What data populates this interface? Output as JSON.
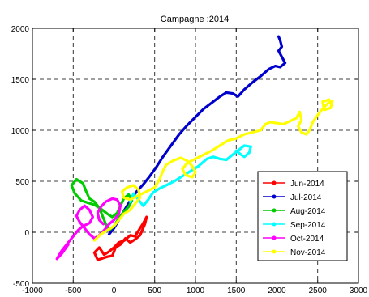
{
  "chart_data": {
    "type": "line",
    "title": "Campagne :2014",
    "xlabel": "",
    "ylabel": "",
    "xlim": [
      -1000,
      3000
    ],
    "ylim": [
      -500,
      2000
    ],
    "xticks": [
      -1000,
      -500,
      0,
      500,
      1000,
      1500,
      2000,
      2500,
      3000
    ],
    "yticks": [
      -500,
      0,
      500,
      1000,
      1500,
      2000
    ],
    "xtick_labels": [
      "-1000",
      "-500",
      "0",
      "500",
      "1000",
      "1500",
      "2000",
      "2500",
      "3000"
    ],
    "ytick_labels": [
      "-500",
      "0",
      "500",
      "1000",
      "1500",
      "2000"
    ],
    "grid": true,
    "legend_position": "lower-right",
    "series": [
      {
        "name": "Jun-2014",
        "color": "#ff0000",
        "points": [
          [
            -200,
            -270
          ],
          [
            -240,
            -200
          ],
          [
            -180,
            -150
          ],
          [
            -120,
            -220
          ],
          [
            -60,
            -190
          ],
          [
            0,
            -150
          ],
          [
            60,
            -100
          ],
          [
            130,
            -80
          ],
          [
            200,
            -30
          ],
          [
            260,
            -40
          ],
          [
            320,
            40
          ],
          [
            360,
            90
          ],
          [
            400,
            150
          ],
          [
            380,
            80
          ],
          [
            320,
            -30
          ],
          [
            260,
            -70
          ],
          [
            200,
            -100
          ],
          [
            140,
            -60
          ],
          [
            80,
            -120
          ],
          [
            20,
            -150
          ],
          [
            -20,
            -230
          ],
          [
            -80,
            -240
          ],
          [
            -160,
            -260
          ],
          [
            -200,
            -270
          ]
        ]
      },
      {
        "name": "Jul-2014",
        "color": "#0000cc",
        "points": [
          [
            -60,
            -20
          ],
          [
            0,
            40
          ],
          [
            60,
            120
          ],
          [
            130,
            220
          ],
          [
            200,
            310
          ],
          [
            280,
            400
          ],
          [
            360,
            470
          ],
          [
            430,
            540
          ],
          [
            520,
            640
          ],
          [
            600,
            740
          ],
          [
            700,
            850
          ],
          [
            800,
            960
          ],
          [
            900,
            1050
          ],
          [
            1000,
            1130
          ],
          [
            1100,
            1210
          ],
          [
            1200,
            1270
          ],
          [
            1300,
            1330
          ],
          [
            1380,
            1370
          ],
          [
            1460,
            1360
          ],
          [
            1520,
            1330
          ],
          [
            1600,
            1400
          ],
          [
            1700,
            1470
          ],
          [
            1800,
            1530
          ],
          [
            1900,
            1600
          ],
          [
            1980,
            1630
          ],
          [
            2040,
            1620
          ],
          [
            2100,
            1660
          ],
          [
            2060,
            1720
          ],
          [
            2020,
            1780
          ],
          [
            2060,
            1820
          ],
          [
            2040,
            1880
          ],
          [
            2020,
            1920
          ]
        ]
      },
      {
        "name": "Aug-2014",
        "color": "#00cc00",
        "points": [
          [
            -400,
            310
          ],
          [
            -480,
            380
          ],
          [
            -520,
            460
          ],
          [
            -460,
            520
          ],
          [
            -380,
            480
          ],
          [
            -340,
            400
          ],
          [
            -300,
            330
          ],
          [
            -240,
            300
          ],
          [
            -180,
            240
          ],
          [
            -140,
            160
          ],
          [
            -100,
            80
          ],
          [
            -60,
            20
          ],
          [
            0,
            60
          ],
          [
            60,
            140
          ],
          [
            120,
            200
          ],
          [
            180,
            250
          ],
          [
            220,
            310
          ],
          [
            180,
            370
          ],
          [
            120,
            330
          ],
          [
            80,
            260
          ],
          [
            40,
            190
          ],
          [
            -20,
            150
          ],
          [
            -80,
            180
          ],
          [
            -160,
            230
          ],
          [
            -240,
            270
          ],
          [
            -320,
            290
          ],
          [
            -400,
            310
          ]
        ]
      },
      {
        "name": "Sep-2014",
        "color": "#00ffff",
        "points": [
          [
            200,
            300
          ],
          [
            240,
            380
          ],
          [
            300,
            320
          ],
          [
            360,
            260
          ],
          [
            420,
            320
          ],
          [
            480,
            390
          ],
          [
            560,
            430
          ],
          [
            640,
            460
          ],
          [
            740,
            500
          ],
          [
            840,
            550
          ],
          [
            940,
            600
          ],
          [
            1040,
            650
          ],
          [
            1140,
            720
          ],
          [
            1220,
            740
          ],
          [
            1300,
            720
          ],
          [
            1380,
            710
          ],
          [
            1440,
            750
          ],
          [
            1520,
            800
          ],
          [
            1600,
            850
          ],
          [
            1680,
            840
          ],
          [
            1660,
            780
          ],
          [
            1600,
            740
          ],
          [
            1560,
            760
          ],
          [
            1500,
            800
          ]
        ]
      },
      {
        "name": "Oct-2014",
        "color": "#ff00ff",
        "points": [
          [
            -560,
            -120
          ],
          [
            -640,
            -210
          ],
          [
            -700,
            -260
          ],
          [
            -640,
            -180
          ],
          [
            -560,
            -100
          ],
          [
            -500,
            -40
          ],
          [
            -440,
            20
          ],
          [
            -380,
            60
          ],
          [
            -300,
            90
          ],
          [
            -260,
            150
          ],
          [
            -300,
            220
          ],
          [
            -360,
            260
          ],
          [
            -420,
            220
          ],
          [
            -460,
            160
          ],
          [
            -420,
            100
          ],
          [
            -360,
            40
          ],
          [
            -300,
            -20
          ],
          [
            -240,
            -60
          ],
          [
            -180,
            -30
          ],
          [
            -120,
            20
          ],
          [
            -60,
            80
          ],
          [
            0,
            120
          ],
          [
            60,
            180
          ],
          [
            80,
            260
          ],
          [
            40,
            320
          ],
          [
            -20,
            330
          ],
          [
            -100,
            300
          ],
          [
            -160,
            250
          ],
          [
            -200,
            190
          ],
          [
            -180,
            120
          ],
          [
            -130,
            80
          ]
        ]
      },
      {
        "name": "Nov-2014",
        "color": "#ffff00",
        "points": [
          [
            -240,
            -80
          ],
          [
            -160,
            -20
          ],
          [
            -80,
            20
          ],
          [
            0,
            60
          ],
          [
            60,
            120
          ],
          [
            120,
            180
          ],
          [
            200,
            220
          ],
          [
            260,
            280
          ],
          [
            320,
            340
          ],
          [
            300,
            420
          ],
          [
            240,
            460
          ],
          [
            160,
            440
          ],
          [
            100,
            400
          ],
          [
            120,
            340
          ],
          [
            200,
            320
          ],
          [
            300,
            360
          ],
          [
            400,
            400
          ],
          [
            500,
            440
          ],
          [
            560,
            520
          ],
          [
            600,
            600
          ],
          [
            640,
            660
          ],
          [
            720,
            700
          ],
          [
            820,
            730
          ],
          [
            900,
            700
          ],
          [
            960,
            650
          ],
          [
            1000,
            590
          ],
          [
            960,
            540
          ],
          [
            880,
            560
          ],
          [
            840,
            620
          ],
          [
            900,
            680
          ],
          [
            1000,
            720
          ],
          [
            1100,
            760
          ],
          [
            1200,
            800
          ],
          [
            1300,
            850
          ],
          [
            1400,
            900
          ],
          [
            1500,
            920
          ],
          [
            1600,
            960
          ],
          [
            1700,
            980
          ],
          [
            1800,
            1000
          ],
          [
            1860,
            1060
          ],
          [
            1920,
            1080
          ],
          [
            2000,
            1070
          ],
          [
            2080,
            1060
          ],
          [
            2160,
            1090
          ],
          [
            2240,
            1120
          ],
          [
            2280,
            1180
          ],
          [
            2300,
            1100
          ],
          [
            2260,
            1040
          ],
          [
            2300,
            980
          ],
          [
            2360,
            960
          ],
          [
            2400,
            1000
          ],
          [
            2440,
            1080
          ],
          [
            2500,
            1150
          ],
          [
            2560,
            1210
          ],
          [
            2620,
            1260
          ],
          [
            2680,
            1290
          ],
          [
            2660,
            1220
          ],
          [
            2580,
            1200
          ],
          [
            2560,
            1280
          ],
          [
            2640,
            1300
          ]
        ]
      }
    ]
  }
}
